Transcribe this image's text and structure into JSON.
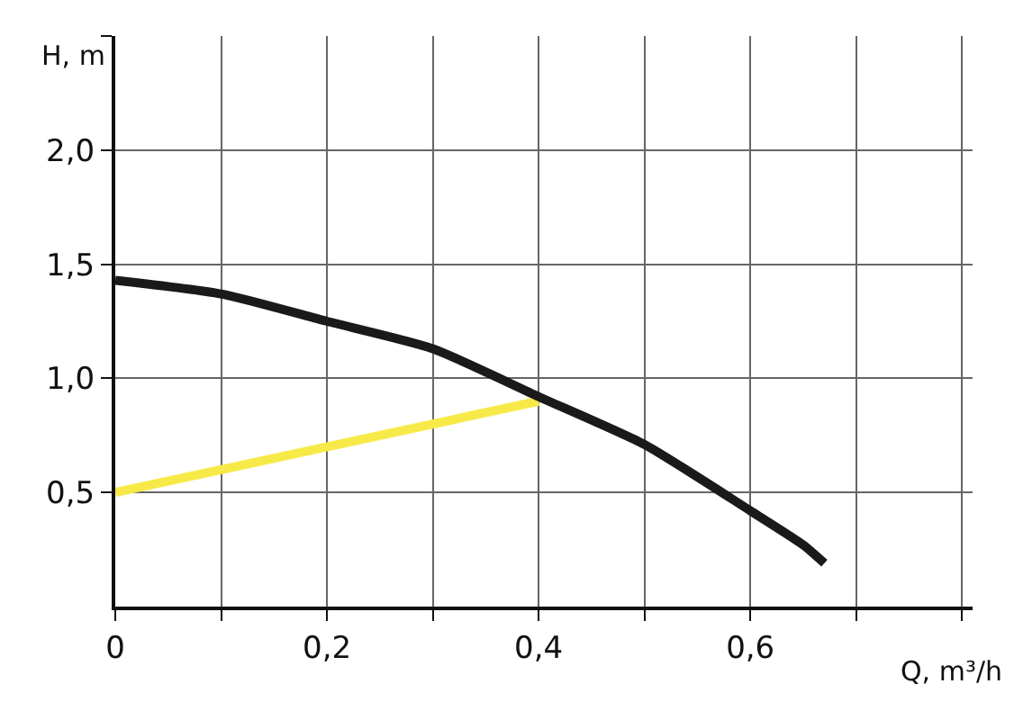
{
  "chart_data": {
    "type": "line",
    "xlabel": "Q, m³/h",
    "ylabel": "H, m",
    "xlim": [
      0,
      0.81
    ],
    "ylim": [
      0,
      2.5
    ],
    "xticks": [
      0,
      {
        "value": 0.1,
        "label": null
      },
      {
        "value": 0.2,
        "label": "0,2"
      },
      {
        "value": 0.3,
        "label": null
      },
      {
        "value": 0.4,
        "label": "0,4"
      },
      {
        "value": 0.5,
        "label": null
      },
      {
        "value": 0.6,
        "label": "0,6"
      },
      {
        "value": 0.7,
        "label": null
      },
      {
        "value": 0.8,
        "label": null
      }
    ],
    "yticks": [
      {
        "value": 0.5,
        "label": "0,5"
      },
      {
        "value": 1,
        "label": "1,0"
      },
      {
        "value": 1.5,
        "label": "1,5"
      },
      {
        "value": 2,
        "label": "2,0"
      },
      {
        "value": 2.5,
        "label": null
      }
    ],
    "grid": true,
    "marker": "none",
    "line_style": "solid",
    "series": [
      {
        "color": "#1a1a1a",
        "x": [
          0,
          0.1,
          0.2,
          0.3,
          0.4,
          0.5,
          0.6,
          0.65,
          0.67
        ],
        "values": [
          1.43,
          1.37,
          1.25,
          1.13,
          0.92,
          0.71,
          0.42,
          0.27,
          0.19
        ]
      },
      {
        "color": "#f7ea48",
        "x": [
          0,
          0.4
        ],
        "values": [
          0.5,
          0.9
        ]
      }
    ]
  }
}
